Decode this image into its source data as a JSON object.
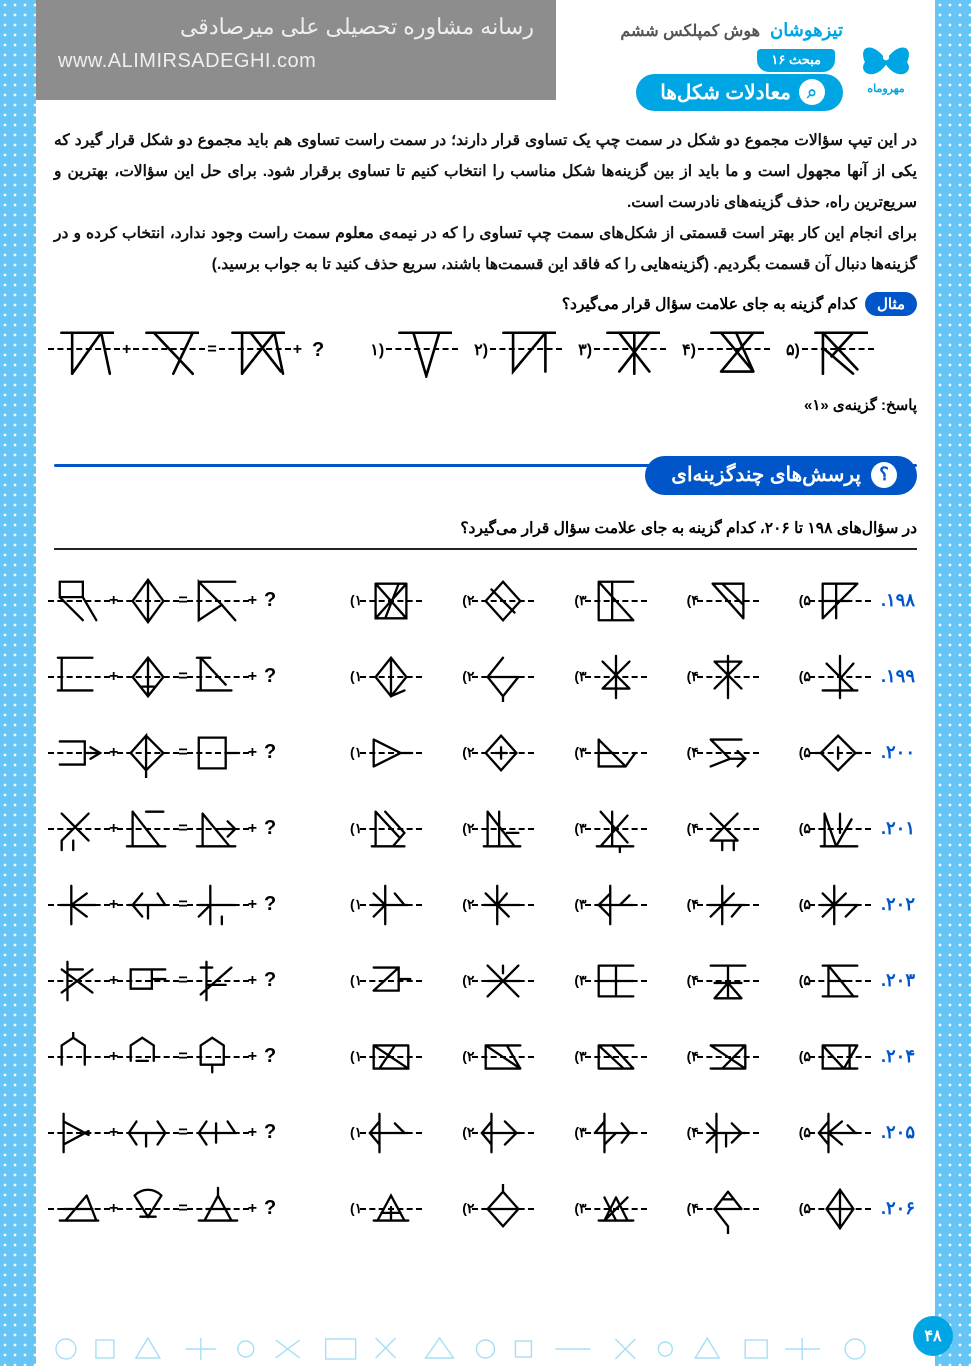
{
  "watermark": {
    "line1": "رسانه مشاوره تحصیلی علی میرصادقی",
    "line2": "www.ALIMIRSADEGHI.com"
  },
  "brand": {
    "series": "تیزهوشان",
    "subject": "هوش کمپلکس ششم",
    "publisher": "مهروماه"
  },
  "topic": {
    "badge": "مبحث ۱۶",
    "title": "معادلات شکل‌ها",
    "icon_glyph": "⌕"
  },
  "intro_paragraphs": [
    "در این تیپ سؤالات مجموع دو شکل در سمت چپ یک تساوی قرار دارند؛ در سمت راست تساوی هم باید مجموع دو شکل قرار گیرد که یکی از آنها مجهول است و ما باید از بین گزینه‌ها شکل مناسب را انتخاب کنیم تا تساوی برقرار شود. برای حل این سؤالات، بهترین و سریع‌ترین راه، حذف گزینه‌های نادرست است.",
    "برای انجام این کار بهتر است قسمتی از شکل‌های سمت چپ تساوی را که در نیمه‌ی معلوم سمت راست وجود ندارد، انتخاب کرده و در گزینه‌ها دنبال آن قسمت بگردیم. (گزینه‌هایی را که فاقد این قسمت‌ها باشند، سریع حذف کنید تا به جواب برسید.)"
  ],
  "symbols": {
    "plus": "+",
    "equals": "=",
    "question": "?"
  },
  "example": {
    "badge": "مثال",
    "question": "کدام گزینه به جای علامت سؤال قرار می‌گیرد؟",
    "answer_label": "پاسخ: گزینه‌ی «۱»",
    "option_labels": [
      "۱)",
      "۲)",
      "۳)",
      "۴)",
      "۵)"
    ],
    "problem_shapes": [
      "M5 10 L55 10 M15 10 L15 48 M15 48 L42 10 M42 10 L50 48",
      "M5 10 L55 10 M12 10 L48 48 M48 10 L30 48",
      "M5 10 L55 10 M14 10 L14 48 M14 48 L44 10 M44 10 L52 48 M22 10 L50 46"
    ],
    "option_shapes": [
      "M5 10 L55 10 M18 10 L30 50 L42 10",
      "M5 10 L55 10 M14 10 L14 46 L44 10 M44 10 L44 46",
      "M5 10 L55 10 M16 10 L44 46 M44 10 L16 46 M30 10 L30 48",
      "M5 10 L55 10 M14 10 L44 46 M44 10 L14 46 M14 46 L44 46 M28 10 L44 46",
      "M5 10 L55 10 M12 10 L12 48 M12 24 L40 48 M12 10 L44 44 M40 10 L20 32"
    ]
  },
  "mc_section": {
    "title": "پرسش‌های چندگزینه‌ای",
    "icon_glyph": "؟",
    "instruction": "در سؤال‌های ۱۹۸ تا ۲۰۶، کدام گزینه به جای علامت سؤال قرار می‌گیرد؟"
  },
  "option_labels": [
    "۱)",
    "۲)",
    "۳)",
    "۴)",
    "۵)"
  ],
  "questions": [
    {
      "num": "۱۹۸.",
      "problem": [
        "M6 6 H30 V22 H6 Z M6 22 L30 46 M30 22 L44 46",
        "M26 4 L10 26 L26 48 L42 26 Z M26 4 L26 48",
        "M6 6 H44 M6 6 L30 30 L6 46 Z M30 30 L44 46"
      ],
      "options": [
        "M10 8 L42 8 M10 8 L42 44 M42 8 L10 44 M10 8 L10 44 L42 44 L42 8 M20 44 L34 8",
        "M26 6 L8 26 L26 46 L44 26 Z M14 14 L38 38",
        "M8 6 L8 46 M8 6 L44 6 M8 46 L44 46 M22 6 L22 46 M8 6 L44 46",
        "M10 8 L42 8 L42 44 M10 8 L42 44 M20 8 L42 30",
        "M8 8 L44 8 M8 8 L8 44 M8 44 L44 8 M22 8 L22 44 M8 26 L36 26"
      ]
    },
    {
      "num": "۱۹۹.",
      "problem": [
        "M8 6 L8 40 M4 6 L40 6 M4 40 L40 40",
        "M26 6 L10 26 L26 46 L42 26 Z M26 46 L26 6 M18 36 L34 36",
        "M8 6 L8 40 M4 40 L40 40 M8 6 L34 34 M4 6 L18 6"
      ],
      "options": [
        "M26 6 L10 26 L26 46 L42 26 Z M26 6 L26 46 M26 46 L40 40",
        "M26 6 L10 26 L26 46 M26 46 L42 26 M10 26 L42 26 M26 46 L26 54",
        "M12 10 L40 38 M40 10 L12 38 M12 38 L40 38 M26 4 L26 48",
        "M12 10 L40 38 M40 10 L12 38 M26 4 L26 48 M12 10 L40 10",
        "M12 12 L40 40 M40 12 L26 28 M26 4 L26 48 M8 40 L44 40"
      ]
    },
    {
      "num": "۲۰۰.",
      "problem": [
        "M6 14 H32 V38 H6 M32 26 L48 26 M38 20 L48 26 L38 32",
        "M24 8 L8 26 L24 44 Z M24 8 L42 26 L24 44 M24 44 L24 52",
        "M6 10 H34 V42 H6 Z M34 26 L48 26"
      ],
      "options": [
        "M8 12 L8 40 M8 12 L36 26 L8 40 M36 26 L48 26",
        "M24 8 L8 26 L24 44 L40 26 Z M18 26 L30 26 M24 20 L24 32",
        "M8 12 L8 40 L36 40 M8 12 L36 40 M36 40 L46 26 M8 26 L24 26",
        "M8 12 L40 12 M8 12 L28 32 L8 40 M28 32 L44 32 M36 24 L44 32 L36 40",
        "M24 8 L6 26 L24 44 L42 26 Z M24 20 L24 32 M6 26 L0 26 M42 26 L48 26"
      ]
    },
    {
      "num": "۲۰۱.",
      "problem": [
        "M8 10 L36 38 M36 10 L8 38 M8 38 L8 48 M20 38 L20 48",
        "M10 8 L10 44 M10 8 L38 44 M4 44 L44 44 M24 8 L42 8",
        "M10 10 L10 44 M10 10 L38 44 M4 44 L44 44 M30 26 L44 26 M36 18 L44 26 L36 34"
      ],
      "options": [
        "M10 8 L10 44 M6 44 L40 44 M10 8 L34 34 M20 8 L40 30 M28 44 L40 30",
        "M10 8 L10 44 M10 8 L38 44 M22 8 L22 44 M6 44 L44 44 M30 30 L42 30",
        "M10 8 L38 40 M22 8 L22 44 M10 44 L38 12 M6 44 L44 44 M30 44 L30 50",
        "M8 10 L36 38 M36 10 L8 38 M8 38 L36 38 M20 38 L20 48 M32 48 L32 38",
        "M10 10 L10 44 M6 44 L44 44 M10 10 L22 44 M22 44 L38 16 M26 10 L26 30"
      ]
    },
    {
      "num": "۲۰۲.",
      "problem": [
        "M18 6 L18 46 M6 26 L44 26 M18 26 L34 14 M18 26 L34 38",
        "M6 26 L44 26 M20 14 L10 26 L20 38 M36 14 L44 26 M26 26 L26 40",
        "M18 6 L18 46 M6 26 L44 26 M18 26 L6 38 M30 38 L30 46"
      ],
      "options": [
        "M20 6 L20 46 M6 26 L44 26 M20 26 L8 14 M20 26 L8 38 M30 14 L40 26",
        "M20 6 L20 46 M6 26 L44 26 M20 26 L8 14 M20 26 L32 38 M30 14 L20 26",
        "M20 6 L20 46 M6 26 L44 26 M20 14 L8 26 L20 38 M30 26 L40 16",
        "M20 6 L20 46 M6 26 L44 26 M20 26 L8 38 M20 26 L32 14 M30 38 L40 26",
        "M20 6 L20 46 M6 26 L44 26 M8 14 L20 26 L8 38 M32 14 L20 26 M32 38 L44 26"
      ]
    },
    {
      "num": "۲۰۳.",
      "problem": [
        "M14 6 L14 46 M8 14 L40 38 M8 38 L40 14 M14 14 L30 14",
        "M8 14 H30 V34 H8 Z M30 24 L44 24 M30 14 L44 14",
        "M14 6 L14 46 M8 40 L40 12 M14 30 L34 30 M8 12 L20 12"
      ],
      "options": [
        "M8 12 H34 V36 H8 M8 36 L34 12 M34 24 L46 24",
        "M10 10 L42 42 M10 42 L42 10 M10 26 L44 26 M26 10 L26 18",
        "M8 10 L44 10 M8 10 L8 42 M8 42 L44 42 M8 26 L44 26 M26 10 L26 42",
        "M8 10 L44 10 M26 10 L26 44 M12 44 L40 44 M12 28 L40 28 M12 44 L26 28 M40 44 L26 28",
        "M8 10 L44 10 M8 42 L44 42 M14 10 L14 42 M14 10 L40 42 M14 26 L32 26"
      ]
    },
    {
      "num": "۲۰۴.",
      "problem": [
        "M8 14 L8 34 M8 14 L20 6 L32 14 M32 14 L32 34 M20 6 L20 0",
        "M8 14 L20 6 L32 14 M8 14 L8 30 M32 14 L32 30 M14 30 L26 30",
        "M8 14 L8 34 M8 14 L20 6 L32 14 L32 34 M8 34 L32 34 M20 34 L20 42"
      ],
      "options": [
        "M8 14 L44 14 M8 14 L8 38 L44 38 L44 14 M8 14 L44 38 M14 38 L30 14",
        "M8 14 L44 14 M8 14 L8 38 L44 38 M8 14 L44 38 M30 14 L44 38",
        "M8 14 L44 14 M8 38 L44 38 M8 14 L34 38 M22 14 L44 38 M8 14 L8 38",
        "M8 14 L44 14 M44 14 L44 38 M8 38 L44 38 M8 14 L44 38 M20 38 L44 14",
        "M8 14 L44 14 M8 14 L8 38 L44 38 M8 14 L30 38 M30 38 L44 14 M36 14 L36 38"
      ]
    },
    {
      "num": "۲۰۵.",
      "problem": [
        "M10 6 L10 46 M10 14 L36 28 M10 38 L36 24",
        "M6 26 L44 26 M14 14 L6 26 L14 38 M36 14 L44 26 L36 38 M24 26 L24 40",
        "M6 26 L44 26 M14 14 L6 26 L14 38 M24 16 L24 36 M36 14 L44 26"
      ],
      "options": [
        "M14 6 L14 46 M6 26 L44 26 M14 14 L4 26 L14 38 M30 16 L40 26",
        "M14 6 L14 46 M6 26 L44 26 M14 14 L4 26 L14 38 M28 14 L40 26 L28 38",
        "M14 6 L14 46 M6 26 L44 26 M14 14 L4 26 M14 38 L26 26 M32 16 L40 26 L32 36",
        "M14 6 L14 46 M6 26 L44 26 M4 16 L14 26 L4 36 M30 16 L40 26 L30 36 M24 26 L24 40",
        "M14 6 L14 46 M6 26 L44 26 M14 14 L4 26 L14 38 M28 14 L14 26 M14 26 L28 38 M34 18 L42 26"
      ]
    },
    {
      "num": "۲۰۶.",
      "problem": [
        "M6 38 L46 38 M12 38 L34 12 M34 12 L44 38 M10 26 L40 26",
        "M12 12 C20 4 32 4 40 12 M12 12 L26 34 L40 12 M18 34 L34 34",
        "M6 38 L46 38 M12 38 L26 12 L40 38 Z M26 12 L26 4 M14 26 L38 26"
      ],
      "options": [
        "M8 38 L44 38 M12 38 L26 12 L40 38 M26 24 L26 38 M16 30 L36 30",
        "M26 8 L10 26 L26 44 L42 26 Z M10 26 L42 26 M26 8 L26 0",
        "M8 38 L44 38 M14 38 L26 14 M26 14 L38 38 M14 38 L38 14 M14 14 L26 38",
        "M26 8 L12 26 L26 44 M26 8 L40 26 M12 26 L40 26 M26 44 L26 52 M20 16 L32 16",
        "M26 6 L12 26 L26 46 L40 26 Z M26 6 L26 46 M12 26 L40 26"
      ]
    }
  ],
  "page_number": "۴۸",
  "colors": {
    "primary": "#00a5e3",
    "secondary": "#0055c8",
    "text": "#111111",
    "watermark_bg": "#8d8d8d"
  }
}
